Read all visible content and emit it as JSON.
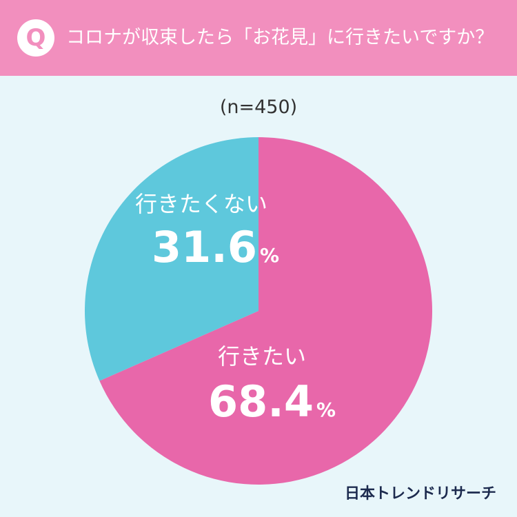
{
  "header": {
    "badge": "Q",
    "question": "コロナが収束したら「お花見」に行きたいですか？"
  },
  "sample_size": "(n=450)",
  "credit": "日本トレンドリサーチ",
  "colors": {
    "header": "#f28fbe",
    "background": "#e8f6fa",
    "want": "#e867aa",
    "dont_want": "#5ec8dc",
    "credit": "#1c2a4e"
  },
  "chart_data": {
    "type": "pie",
    "title": "コロナが収束したら「お花見」に行きたいですか？",
    "slices": [
      {
        "label": "行きたい",
        "value": 68.4,
        "display": "68.4",
        "unit": "%",
        "color": "#e867aa"
      },
      {
        "label": "行きたくない",
        "value": 31.6,
        "display": "31.6",
        "unit": "%",
        "color": "#5ec8dc"
      }
    ]
  }
}
